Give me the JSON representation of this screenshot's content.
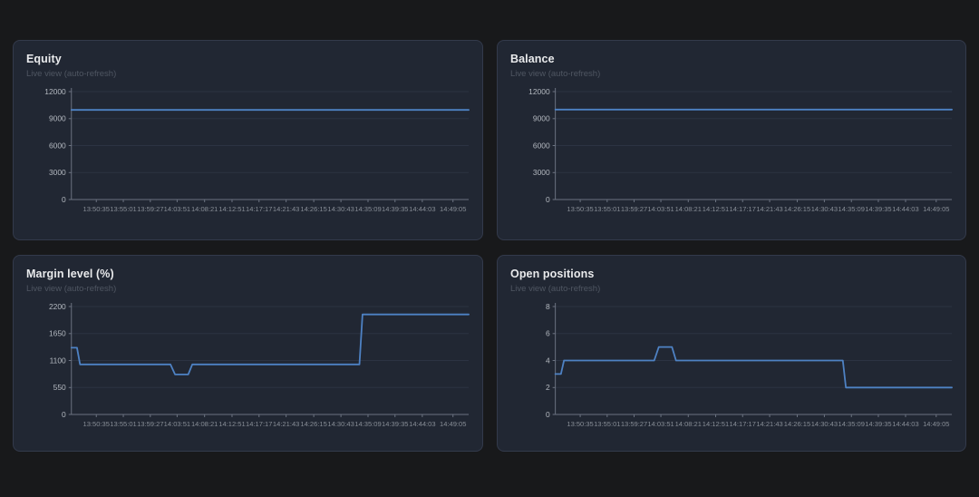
{
  "colors": {
    "background": "#18191b",
    "card_background": "#212733",
    "card_border": "#333a4b",
    "line": "#4e82c4",
    "grid": "#2c3342",
    "axis": "#6b7280",
    "y_label": "#b4b9c0",
    "x_label": "#878d96",
    "title": "#e9eaec",
    "subtitle": "#4f5662"
  },
  "chart_data": [
    {
      "type": "line",
      "title": "Equity",
      "subtitle": "Live view (auto-refresh)",
      "legend": "none",
      "grid": true,
      "ylim": [
        0,
        12000
      ],
      "y_ticks": [
        0,
        3000,
        6000,
        9000,
        12000
      ],
      "x_domain": [
        "13:46:30",
        "14:51:40"
      ],
      "x_ticks": [
        "13:50:35",
        "13:55:01",
        "13:59:27",
        "14:03:51",
        "14:08:21",
        "14:12:51",
        "14:17:17",
        "14:21:43",
        "14:26:15",
        "14:30:43",
        "14:35:09",
        "14:39:35",
        "14:44:03",
        "14:49:05"
      ],
      "series": [
        {
          "name": "Equity",
          "points": [
            {
              "t": "13:46:30",
              "v": 9960
            },
            {
              "t": "14:51:40",
              "v": 9960
            }
          ]
        }
      ]
    },
    {
      "type": "line",
      "title": "Balance",
      "subtitle": "Live view (auto-refresh)",
      "legend": "none",
      "grid": true,
      "ylim": [
        0,
        12000
      ],
      "y_ticks": [
        0,
        3000,
        6000,
        9000,
        12000
      ],
      "x_domain": [
        "13:46:30",
        "14:51:40"
      ],
      "x_ticks": [
        "13:50:35",
        "13:55:01",
        "13:59:27",
        "14:03:51",
        "14:08:21",
        "14:12:51",
        "14:17:17",
        "14:21:43",
        "14:26:15",
        "14:30:43",
        "14:35:09",
        "14:39:35",
        "14:44:03",
        "14:49:05"
      ],
      "series": [
        {
          "name": "Balance",
          "points": [
            {
              "t": "13:46:30",
              "v": 10000
            },
            {
              "t": "14:51:40",
              "v": 10000
            }
          ]
        }
      ]
    },
    {
      "type": "line",
      "title": "Margin level (%)",
      "subtitle": "Live view (auto-refresh)",
      "legend": "none",
      "grid": true,
      "ylim": [
        0,
        2200
      ],
      "y_ticks": [
        0,
        550,
        1100,
        1650,
        2200
      ],
      "x_domain": [
        "13:46:30",
        "14:51:40"
      ],
      "x_ticks": [
        "13:50:35",
        "13:55:01",
        "13:59:27",
        "14:03:51",
        "14:08:21",
        "14:12:51",
        "14:17:17",
        "14:21:43",
        "14:26:15",
        "14:30:43",
        "14:35:09",
        "14:39:35",
        "14:44:03",
        "14:49:05"
      ],
      "series": [
        {
          "name": "Margin level",
          "points": [
            {
              "t": "13:46:30",
              "v": 1360
            },
            {
              "t": "13:47:25",
              "v": 1360
            },
            {
              "t": "13:47:55",
              "v": 1020
            },
            {
              "t": "14:02:45",
              "v": 1020
            },
            {
              "t": "14:03:30",
              "v": 816
            },
            {
              "t": "14:05:40",
              "v": 816
            },
            {
              "t": "14:06:20",
              "v": 1020
            },
            {
              "t": "14:33:45",
              "v": 1020
            },
            {
              "t": "14:34:15",
              "v": 2040
            },
            {
              "t": "14:51:40",
              "v": 2040
            }
          ]
        }
      ]
    },
    {
      "type": "line",
      "title": "Open positions",
      "subtitle": "Live view (auto-refresh)",
      "legend": "none",
      "grid": true,
      "ylim": [
        0,
        8
      ],
      "y_ticks": [
        0,
        2,
        4,
        6,
        8
      ],
      "x_domain": [
        "13:46:30",
        "14:51:40"
      ],
      "x_ticks": [
        "13:50:35",
        "13:55:01",
        "13:59:27",
        "14:03:51",
        "14:08:21",
        "14:12:51",
        "14:17:17",
        "14:21:43",
        "14:26:15",
        "14:30:43",
        "14:35:09",
        "14:39:35",
        "14:44:03",
        "14:49:05"
      ],
      "series": [
        {
          "name": "Open positions",
          "points": [
            {
              "t": "13:46:30",
              "v": 3
            },
            {
              "t": "13:47:25",
              "v": 3
            },
            {
              "t": "13:47:55",
              "v": 4
            },
            {
              "t": "14:02:45",
              "v": 4
            },
            {
              "t": "14:03:30",
              "v": 5
            },
            {
              "t": "14:05:40",
              "v": 5
            },
            {
              "t": "14:06:20",
              "v": 4
            },
            {
              "t": "14:33:45",
              "v": 4
            },
            {
              "t": "14:34:15",
              "v": 2
            },
            {
              "t": "14:51:40",
              "v": 2
            }
          ]
        }
      ]
    }
  ]
}
